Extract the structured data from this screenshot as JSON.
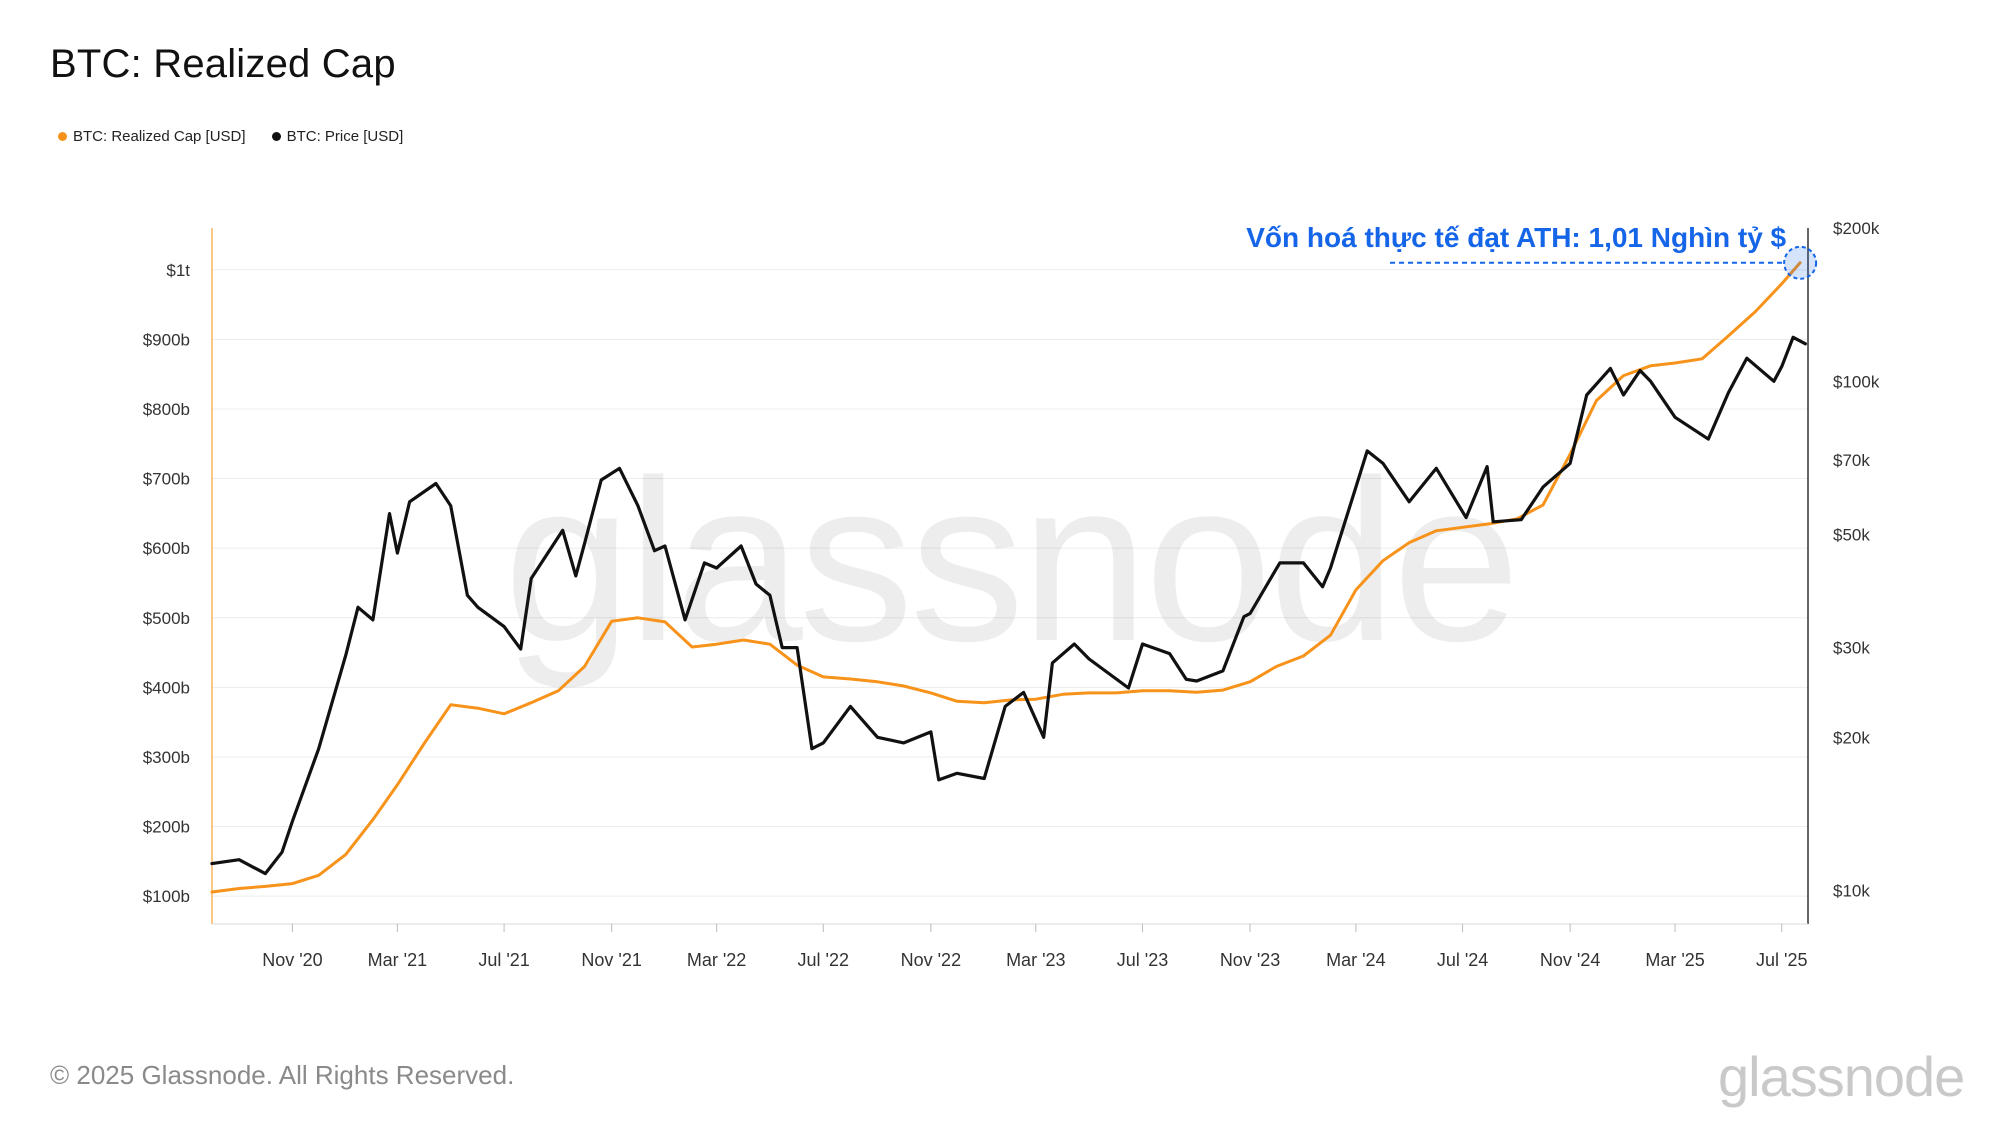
{
  "chart_data": {
    "type": "line",
    "title": "BTC: Realized Cap",
    "legend_placement": "top-left",
    "grid": "horizontal",
    "x_axis": {
      "type": "date",
      "range": [
        "2020-08-01",
        "2025-07-31"
      ],
      "ticks": [
        {
          "date": "2020-11-01",
          "label": "Nov '20"
        },
        {
          "date": "2021-03-01",
          "label": "Mar '21"
        },
        {
          "date": "2021-07-01",
          "label": "Jul '21"
        },
        {
          "date": "2021-11-01",
          "label": "Nov '21"
        },
        {
          "date": "2022-03-01",
          "label": "Mar '22"
        },
        {
          "date": "2022-07-01",
          "label": "Jul '22"
        },
        {
          "date": "2022-11-01",
          "label": "Nov '22"
        },
        {
          "date": "2023-03-01",
          "label": "Mar '23"
        },
        {
          "date": "2023-07-01",
          "label": "Jul '23"
        },
        {
          "date": "2023-11-01",
          "label": "Nov '23"
        },
        {
          "date": "2024-03-01",
          "label": "Mar '24"
        },
        {
          "date": "2024-07-01",
          "label": "Jul '24"
        },
        {
          "date": "2024-11-01",
          "label": "Nov '24"
        },
        {
          "date": "2025-03-01",
          "label": "Mar '25"
        },
        {
          "date": "2025-07-01",
          "label": "Jul '25"
        }
      ]
    },
    "y_left": {
      "scale": "linear",
      "range": [
        60000000000,
        1060000000000
      ],
      "ticks": [
        {
          "value": 100000000000,
          "label": "$100b"
        },
        {
          "value": 200000000000,
          "label": "$200b"
        },
        {
          "value": 300000000000,
          "label": "$300b"
        },
        {
          "value": 400000000000,
          "label": "$400b"
        },
        {
          "value": 500000000000,
          "label": "$500b"
        },
        {
          "value": 600000000000,
          "label": "$600b"
        },
        {
          "value": 700000000000,
          "label": "$700b"
        },
        {
          "value": 800000000000,
          "label": "$800b"
        },
        {
          "value": 900000000000,
          "label": "$900b"
        },
        {
          "value": 1000000000000,
          "label": "$1t"
        }
      ]
    },
    "y_right": {
      "scale": "log",
      "range": [
        8600,
        200000
      ],
      "ticks": [
        {
          "value": 10000,
          "label": "$10k"
        },
        {
          "value": 20000,
          "label": "$20k"
        },
        {
          "value": 30000,
          "label": "$30k"
        },
        {
          "value": 50000,
          "label": "$50k"
        },
        {
          "value": 70000,
          "label": "$70k"
        },
        {
          "value": 100000,
          "label": "$100k"
        },
        {
          "value": 200000,
          "label": "$200k"
        }
      ]
    },
    "series": [
      {
        "name": "BTC: Realized Cap [USD]",
        "axis": "left",
        "color": "#f7931a",
        "points": [
          [
            "2020-08-01",
            106000000000
          ],
          [
            "2020-09-01",
            111000000000
          ],
          [
            "2020-10-01",
            114000000000
          ],
          [
            "2020-11-01",
            118000000000
          ],
          [
            "2020-12-01",
            130000000000
          ],
          [
            "2021-01-01",
            160000000000
          ],
          [
            "2021-02-01",
            210000000000
          ],
          [
            "2021-03-01",
            260000000000
          ],
          [
            "2021-04-01",
            320000000000
          ],
          [
            "2021-05-01",
            375000000000
          ],
          [
            "2021-06-01",
            370000000000
          ],
          [
            "2021-07-01",
            362000000000
          ],
          [
            "2021-08-01",
            378000000000
          ],
          [
            "2021-09-01",
            395000000000
          ],
          [
            "2021-10-01",
            430000000000
          ],
          [
            "2021-11-01",
            495000000000
          ],
          [
            "2021-12-01",
            500000000000
          ],
          [
            "2022-01-01",
            494000000000
          ],
          [
            "2022-02-01",
            458000000000
          ],
          [
            "2022-03-01",
            462000000000
          ],
          [
            "2022-04-01",
            468000000000
          ],
          [
            "2022-05-01",
            462000000000
          ],
          [
            "2022-06-01",
            432000000000
          ],
          [
            "2022-07-01",
            415000000000
          ],
          [
            "2022-08-01",
            412000000000
          ],
          [
            "2022-09-01",
            408000000000
          ],
          [
            "2022-10-01",
            402000000000
          ],
          [
            "2022-11-01",
            392000000000
          ],
          [
            "2022-12-01",
            380000000000
          ],
          [
            "2023-01-01",
            378000000000
          ],
          [
            "2023-02-01",
            382000000000
          ],
          [
            "2023-03-01",
            383000000000
          ],
          [
            "2023-04-01",
            390000000000
          ],
          [
            "2023-05-01",
            392000000000
          ],
          [
            "2023-06-01",
            392000000000
          ],
          [
            "2023-07-01",
            395000000000
          ],
          [
            "2023-08-01",
            395000000000
          ],
          [
            "2023-09-01",
            393000000000
          ],
          [
            "2023-10-01",
            396000000000
          ],
          [
            "2023-11-01",
            408000000000
          ],
          [
            "2023-12-01",
            430000000000
          ],
          [
            "2024-01-01",
            445000000000
          ],
          [
            "2024-02-01",
            475000000000
          ],
          [
            "2024-03-01",
            540000000000
          ],
          [
            "2024-04-01",
            582000000000
          ],
          [
            "2024-05-01",
            608000000000
          ],
          [
            "2024-06-01",
            625000000000
          ],
          [
            "2024-07-01",
            630000000000
          ],
          [
            "2024-08-01",
            635000000000
          ],
          [
            "2024-09-01",
            642000000000
          ],
          [
            "2024-10-01",
            662000000000
          ],
          [
            "2024-11-01",
            735000000000
          ],
          [
            "2024-12-01",
            812000000000
          ],
          [
            "2025-01-01",
            848000000000
          ],
          [
            "2025-02-01",
            862000000000
          ],
          [
            "2025-03-01",
            866000000000
          ],
          [
            "2025-04-01",
            872000000000
          ],
          [
            "2025-05-01",
            905000000000
          ],
          [
            "2025-06-01",
            940000000000
          ],
          [
            "2025-07-01",
            980000000000
          ],
          [
            "2025-07-22",
            1010000000000
          ]
        ]
      },
      {
        "name": "BTC: Price [USD]",
        "axis": "right",
        "color": "#111111",
        "points": [
          [
            "2020-08-01",
            11300
          ],
          [
            "2020-09-01",
            11500
          ],
          [
            "2020-10-01",
            10800
          ],
          [
            "2020-10-20",
            11900
          ],
          [
            "2020-11-01",
            13700
          ],
          [
            "2020-12-01",
            19000
          ],
          [
            "2021-01-01",
            29000
          ],
          [
            "2021-01-15",
            36000
          ],
          [
            "2021-02-01",
            34000
          ],
          [
            "2021-02-20",
            55000
          ],
          [
            "2021-03-01",
            46000
          ],
          [
            "2021-03-15",
            58000
          ],
          [
            "2021-04-14",
            63000
          ],
          [
            "2021-05-01",
            57000
          ],
          [
            "2021-05-20",
            38000
          ],
          [
            "2021-06-01",
            36000
          ],
          [
            "2021-07-01",
            33000
          ],
          [
            "2021-07-20",
            29800
          ],
          [
            "2021-08-01",
            41000
          ],
          [
            "2021-09-06",
            51000
          ],
          [
            "2021-09-21",
            41500
          ],
          [
            "2021-10-01",
            48000
          ],
          [
            "2021-10-20",
            64000
          ],
          [
            "2021-11-10",
            67500
          ],
          [
            "2021-12-01",
            57000
          ],
          [
            "2021-12-20",
            46500
          ],
          [
            "2022-01-01",
            47500
          ],
          [
            "2022-01-24",
            34000
          ],
          [
            "2022-02-15",
            44000
          ],
          [
            "2022-03-01",
            43000
          ],
          [
            "2022-03-29",
            47500
          ],
          [
            "2022-04-15",
            40000
          ],
          [
            "2022-05-01",
            38000
          ],
          [
            "2022-05-15",
            30000
          ],
          [
            "2022-06-01",
            30000
          ],
          [
            "2022-06-18",
            19000
          ],
          [
            "2022-07-01",
            19500
          ],
          [
            "2022-08-01",
            23000
          ],
          [
            "2022-09-01",
            20000
          ],
          [
            "2022-10-01",
            19500
          ],
          [
            "2022-11-01",
            20500
          ],
          [
            "2022-11-10",
            16500
          ],
          [
            "2022-12-01",
            17000
          ],
          [
            "2023-01-01",
            16600
          ],
          [
            "2023-01-25",
            23000
          ],
          [
            "2023-02-15",
            24500
          ],
          [
            "2023-03-10",
            20000
          ],
          [
            "2023-03-20",
            28000
          ],
          [
            "2023-04-14",
            30500
          ],
          [
            "2023-05-01",
            28500
          ],
          [
            "2023-06-15",
            25000
          ],
          [
            "2023-07-01",
            30500
          ],
          [
            "2023-08-01",
            29200
          ],
          [
            "2023-08-20",
            26000
          ],
          [
            "2023-09-01",
            25800
          ],
          [
            "2023-10-01",
            27000
          ],
          [
            "2023-10-25",
            34500
          ],
          [
            "2023-11-01",
            35000
          ],
          [
            "2023-12-05",
            44000
          ],
          [
            "2024-01-01",
            44000
          ],
          [
            "2024-01-23",
            39500
          ],
          [
            "2024-02-01",
            43000
          ],
          [
            "2024-03-01",
            62000
          ],
          [
            "2024-03-14",
            73000
          ],
          [
            "2024-04-01",
            69000
          ],
          [
            "2024-05-01",
            58000
          ],
          [
            "2024-06-01",
            67500
          ],
          [
            "2024-07-05",
            54000
          ],
          [
            "2024-07-29",
            68000
          ],
          [
            "2024-08-05",
            53000
          ],
          [
            "2024-09-06",
            53500
          ],
          [
            "2024-10-01",
            62000
          ],
          [
            "2024-11-01",
            69000
          ],
          [
            "2024-11-20",
            94000
          ],
          [
            "2024-12-17",
            106000
          ],
          [
            "2025-01-01",
            94000
          ],
          [
            "2025-01-20",
            105000
          ],
          [
            "2025-02-01",
            100000
          ],
          [
            "2025-03-01",
            85000
          ],
          [
            "2025-04-08",
            77000
          ],
          [
            "2025-05-01",
            95000
          ],
          [
            "2025-05-22",
            111000
          ],
          [
            "2025-06-22",
            100000
          ],
          [
            "2025-07-01",
            107000
          ],
          [
            "2025-07-14",
            122000
          ],
          [
            "2025-07-28",
            118500
          ]
        ]
      }
    ],
    "annotation": {
      "text": "Vốn hoá thực tế đạt ATH: 1,01 Nghìn tỷ $",
      "color": "#1565e8",
      "date": "2025-07-22",
      "value": 1010000000000
    }
  },
  "footer": {
    "copyright": "© 2025 Glassnode. All Rights Reserved.",
    "logo": "glassnode"
  },
  "watermark": "glassnode"
}
